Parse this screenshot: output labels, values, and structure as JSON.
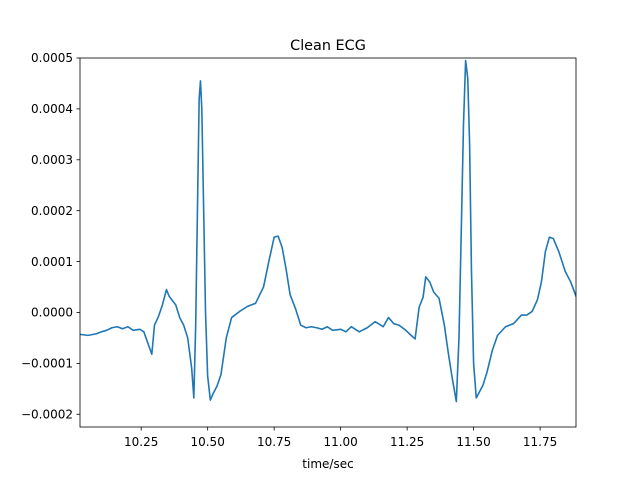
{
  "chart_data": {
    "type": "line",
    "title": "Clean ECG",
    "xlabel": "time/sec",
    "ylabel": "",
    "xlim": [
      10.02,
      11.885
    ],
    "ylim": [
      -0.000225,
      0.0005
    ],
    "grid": false,
    "x_ticks": [
      10.25,
      10.5,
      10.75,
      11.0,
      11.25,
      11.5,
      11.75
    ],
    "x_tick_labels": [
      "10.25",
      "10.50",
      "10.75",
      "11.00",
      "11.25",
      "11.50",
      "11.75"
    ],
    "y_ticks": [
      -0.0002,
      -0.0001,
      0.0,
      0.0001,
      0.0002,
      0.0003,
      0.0004,
      0.0005
    ],
    "y_tick_labels": [
      "−0.0002",
      "−0.0001",
      "0.0000",
      "0.0001",
      "0.0002",
      "0.0003",
      "0.0004",
      "0.0005"
    ],
    "series": [
      {
        "color": "#1f77b4",
        "x": [
          10.02,
          10.05,
          10.08,
          10.1,
          10.12,
          10.14,
          10.16,
          10.18,
          10.2,
          10.22,
          10.245,
          10.26,
          10.275,
          10.29,
          10.3,
          10.315,
          10.33,
          10.345,
          10.355,
          10.365,
          10.38,
          10.395,
          10.41,
          10.425,
          10.44,
          10.448,
          10.455,
          10.462,
          10.468,
          10.473,
          10.478,
          10.485,
          10.492,
          10.5,
          10.51,
          10.52,
          10.535,
          10.55,
          10.57,
          10.59,
          10.62,
          10.65,
          10.68,
          10.71,
          10.73,
          10.75,
          10.765,
          10.78,
          10.795,
          10.81,
          10.83,
          10.85,
          10.87,
          10.89,
          10.91,
          10.93,
          10.95,
          10.97,
          11.0,
          11.02,
          11.04,
          11.07,
          11.1,
          11.13,
          11.16,
          11.18,
          11.2,
          11.22,
          11.245,
          11.265,
          11.28,
          11.295,
          11.31,
          11.32,
          11.335,
          11.35,
          11.37,
          11.39,
          11.405,
          11.42,
          11.435,
          11.445,
          11.455,
          11.462,
          11.47,
          11.478,
          11.485,
          11.492,
          11.5,
          11.51,
          11.52,
          11.535,
          11.55,
          11.57,
          11.59,
          11.62,
          11.65,
          11.68,
          11.7,
          11.72,
          11.74,
          11.755,
          11.77,
          11.785,
          11.8,
          11.82,
          11.845,
          11.865,
          11.885
        ],
        "y": [
          -4.3e-05,
          -4.5e-05,
          -4.2e-05,
          -3.8e-05,
          -3.5e-05,
          -3e-05,
          -2.8e-05,
          -3.2e-05,
          -2.8e-05,
          -3.5e-05,
          -3.3e-05,
          -3.8e-05,
          -6e-05,
          -8.2e-05,
          -2.5e-05,
          -8e-06,
          1.5e-05,
          4.5e-05,
          3.2e-05,
          2.5e-05,
          1.5e-05,
          -1e-05,
          -2.5e-05,
          -5e-05,
          -0.00011,
          -0.000168,
          -2.5e-05,
          0.000215,
          0.00042,
          0.000455,
          0.0004,
          0.0002,
          -0.0,
          -0.000125,
          -0.000172,
          -0.00016,
          -0.000145,
          -0.000122,
          -5e-05,
          -1e-05,
          2e-06,
          1.2e-05,
          1.8e-05,
          5e-05,
          0.0001,
          0.000148,
          0.00015,
          0.000128,
          8.5e-05,
          3.5e-05,
          8e-06,
          -2.5e-05,
          -3e-05,
          -2.8e-05,
          -3e-05,
          -3.3e-05,
          -2.8e-05,
          -3.5e-05,
          -3.3e-05,
          -3.8e-05,
          -2.8e-05,
          -3.8e-05,
          -3e-05,
          -1.8e-05,
          -2.8e-05,
          -1e-05,
          -2.2e-05,
          -2.5e-05,
          -3.5e-05,
          -4.5e-05,
          -5.2e-05,
          1e-05,
          3e-05,
          7e-05,
          6e-05,
          4e-05,
          2.8e-05,
          -2.5e-05,
          -8e-05,
          -0.00013,
          -0.000175,
          -5e-05,
          0.000195,
          0.00037,
          0.000495,
          0.00046,
          0.00033,
          8e-05,
          -0.0001,
          -0.000168,
          -0.000158,
          -0.000143,
          -0.000118,
          -7.5e-05,
          -4.5e-05,
          -2.8e-05,
          -2.2e-05,
          -5e-06,
          -5e-06,
          2e-06,
          2.5e-05,
          6e-05,
          0.00012,
          0.000148,
          0.000145,
          0.00012,
          8e-05,
          6e-05,
          3.2e-05
        ]
      }
    ]
  }
}
